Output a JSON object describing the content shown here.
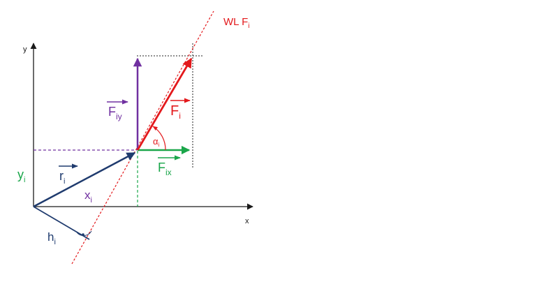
{
  "axes": {
    "x_label": "x",
    "y_label": "y"
  },
  "labels": {
    "line_of_action": {
      "main": "WL F",
      "sub": "i"
    },
    "force": {
      "main": "F",
      "sub": "i"
    },
    "force_y": {
      "main": "F",
      "sub": "iy"
    },
    "force_x": {
      "main": "F",
      "sub": "ix"
    },
    "position_vector": {
      "main": "r",
      "sub": "i"
    },
    "x_coordinate": {
      "main": "x",
      "sub": "i"
    },
    "y_coordinate": {
      "main": "y",
      "sub": "i"
    },
    "lever_arm": {
      "main": "h",
      "sub": "i"
    },
    "angle": {
      "main": "α",
      "sub": "i"
    }
  },
  "colors": {
    "axis": "#1a1a1a",
    "force": "#e3191c",
    "force_y": "#7030a0",
    "force_x": "#1aa64a",
    "position": "#1f3b6e",
    "guide": "#222222"
  }
}
